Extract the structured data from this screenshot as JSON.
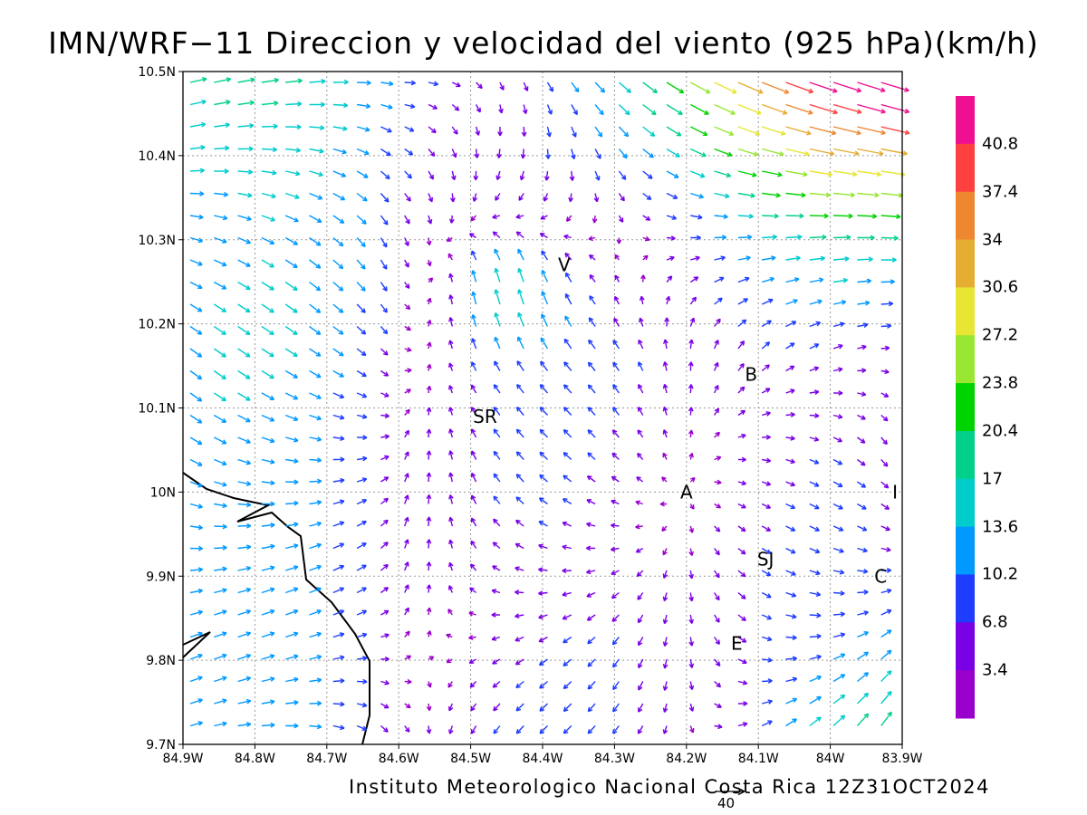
{
  "title": "IMN/WRF−11 Direccion y velocidad del viento (925 hPa)(km/h)",
  "footer": "Instituto Meteorologico Nacional Costa Rica 12Z31OCT2024",
  "reference_vector_label": "40",
  "colors": {
    "scale": [
      "#9900cc",
      "#7a00e6",
      "#1f3dff",
      "#0099ff",
      "#00cccc",
      "#00d08a",
      "#00d400",
      "#99e633",
      "#e6e633",
      "#e6ad33",
      "#ee8830",
      "#ff4040",
      "#ee1090"
    ]
  },
  "chart_data": {
    "type": "vector-field",
    "title": "IMN/WRF−11 Direccion y velocidad del viento (925 hPa)(km/h)",
    "x_ticks": [
      "84.9W",
      "84.8W",
      "84.7W",
      "84.6W",
      "84.5W",
      "84.4W",
      "84.3W",
      "84.2W",
      "84.1W",
      "84W",
      "83.9W"
    ],
    "y_ticks": [
      "10.5N",
      "10.4N",
      "10.3N",
      "10.2N",
      "10.1N",
      "10N",
      "9.9N",
      "9.8N",
      "9.7N"
    ],
    "xlim": [
      -84.9,
      -83.9
    ],
    "ylim": [
      9.7,
      10.5
    ],
    "grid": true,
    "colorbar": {
      "labels": [
        "40.8",
        "37.4",
        "34",
        "30.6",
        "27.2",
        "23.8",
        "20.4",
        "17",
        "13.6",
        "10.2",
        "6.8",
        "3.4"
      ]
    },
    "stations": [
      {
        "label": "V",
        "lon": -84.37,
        "lat": 10.27
      },
      {
        "label": "SR",
        "lon": -84.48,
        "lat": 10.09
      },
      {
        "label": "B",
        "lon": -84.11,
        "lat": 10.14
      },
      {
        "label": "A",
        "lon": -84.2,
        "lat": 10.0
      },
      {
        "label": "I",
        "lon": -83.91,
        "lat": 10.0
      },
      {
        "label": "SJ",
        "lon": -84.09,
        "lat": 9.92
      },
      {
        "label": "C",
        "lon": -83.93,
        "lat": 9.9
      },
      {
        "label": "E",
        "lon": -84.13,
        "lat": 9.82
      }
    ]
  }
}
